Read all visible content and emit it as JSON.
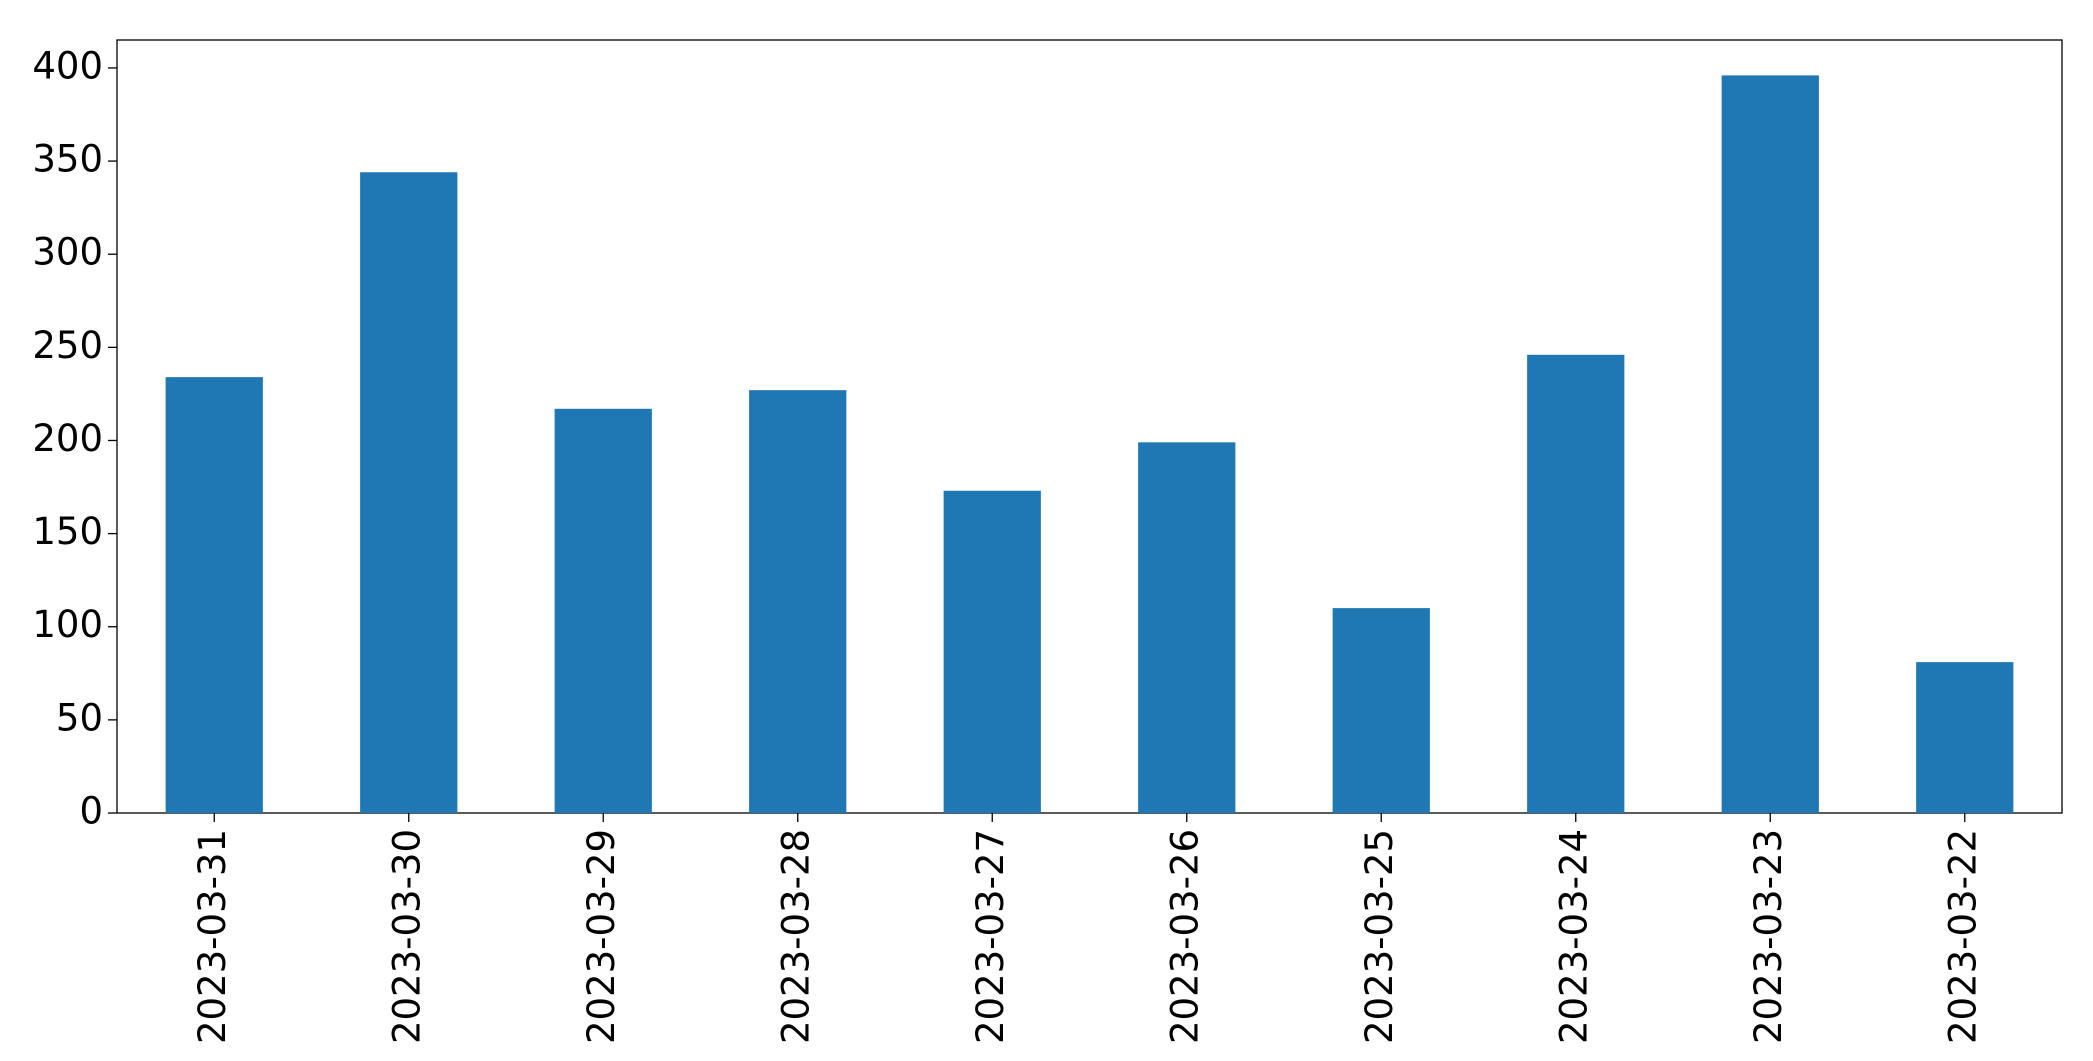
{
  "chart_data": {
    "type": "bar",
    "categories": [
      "2023-03-31",
      "2023-03-30",
      "2023-03-29",
      "2023-03-28",
      "2023-03-27",
      "2023-03-26",
      "2023-03-25",
      "2023-03-24",
      "2023-03-23",
      "2023-03-22"
    ],
    "values": [
      234,
      344,
      217,
      227,
      173,
      199,
      110,
      246,
      396,
      81
    ],
    "color": "#1f77b4",
    "ylim": [
      0,
      415
    ],
    "yticks": [
      0,
      50,
      100,
      150,
      200,
      250,
      300,
      350,
      400
    ],
    "grid": false
  }
}
